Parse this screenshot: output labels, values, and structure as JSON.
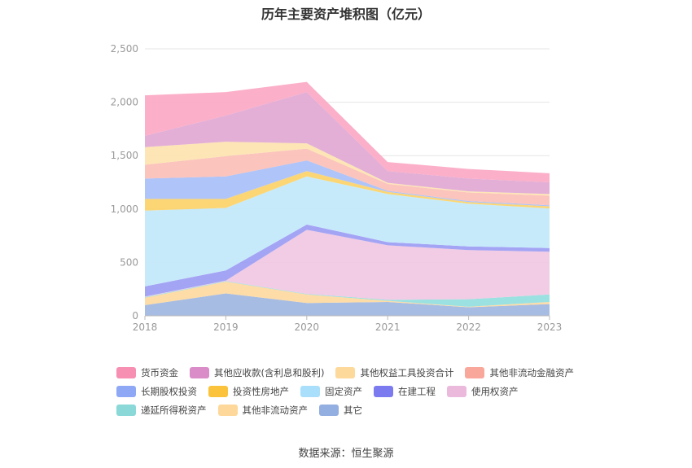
{
  "chart_data": {
    "type": "area",
    "stacked": true,
    "title": "历年主要资产堆积图（亿元）",
    "categories": [
      "2018",
      "2019",
      "2020",
      "2021",
      "2022",
      "2023"
    ],
    "ylim": [
      0,
      2500
    ],
    "yticks": [
      0,
      500,
      1000,
      1500,
      2000,
      2500
    ],
    "ytick_labels": [
      "0",
      "500",
      "1,000",
      "1,500",
      "2,000",
      "2,500"
    ],
    "grid": true,
    "legend_position": "bottom",
    "series": [
      {
        "name": "其它",
        "color": "#9fb6e0",
        "values": [
          100,
          210,
          120,
          130,
          80,
          110
        ]
      },
      {
        "name": "其他非流动资产",
        "color": "#fdd9a0",
        "values": [
          70,
          110,
          80,
          10,
          5,
          20
        ]
      },
      {
        "name": "递延所得税资产",
        "color": "#94dede",
        "values": [
          5,
          5,
          5,
          10,
          70,
          70
        ]
      },
      {
        "name": "使用权资产",
        "color": "#f0c8e2",
        "values": [
          5,
          5,
          600,
          510,
          460,
          400
        ]
      },
      {
        "name": "在建工程",
        "color": "#9c9cf4",
        "values": [
          95,
          95,
          50,
          30,
          35,
          35
        ]
      },
      {
        "name": "固定资产",
        "color": "#c2e8fa",
        "values": [
          710,
          585,
          450,
          450,
          400,
          370
        ]
      },
      {
        "name": "投资性房地产",
        "color": "#fcd268",
        "values": [
          110,
          85,
          50,
          20,
          15,
          20
        ]
      },
      {
        "name": "长期股权投资",
        "color": "#a8bff8",
        "values": [
          190,
          210,
          100,
          10,
          10,
          10
        ]
      },
      {
        "name": "其他非流动金融资产",
        "color": "#fbbfb6",
        "values": [
          130,
          190,
          110,
          65,
          80,
          90
        ]
      },
      {
        "name": "其他权益工具投资合计",
        "color": "#fde3b0",
        "values": [
          165,
          135,
          50,
          10,
          10,
          15
        ]
      },
      {
        "name": "其他应收款(含利息和股利)",
        "color": "#e1a8d2",
        "values": [
          105,
          245,
          480,
          110,
          120,
          110
        ]
      },
      {
        "name": "货币资金",
        "color": "#fba8c4",
        "values": [
          380,
          220,
          95,
          85,
          90,
          85
        ]
      }
    ],
    "legend_order": [
      "货币资金",
      "其他应收款(含利息和股利)",
      "其他权益工具投资合计",
      "其他非流动金融资产",
      "长期股权投资",
      "投资性房地产",
      "固定资产",
      "在建工程",
      "使用权资产",
      "递延所得税资产",
      "其他非流动资产",
      "其它"
    ],
    "legend_colors": {
      "货币资金": "#f78fb3",
      "其他应收款(含利息和股利)": "#d98cc8",
      "其他权益工具投资合计": "#fdd99b",
      "其他非流动金融资产": "#f9a79a",
      "长期股权投资": "#8ea8f6",
      "投资性房地产": "#fbc33c",
      "固定资产": "#a9dffa",
      "在建工程": "#7b7bef",
      "使用权资产": "#ebb9dc",
      "递延所得税资产": "#8ad8d8",
      "其他非流动资产": "#fdd89a",
      "其它": "#93aee0"
    }
  },
  "source": "数据来源：恒生聚源"
}
